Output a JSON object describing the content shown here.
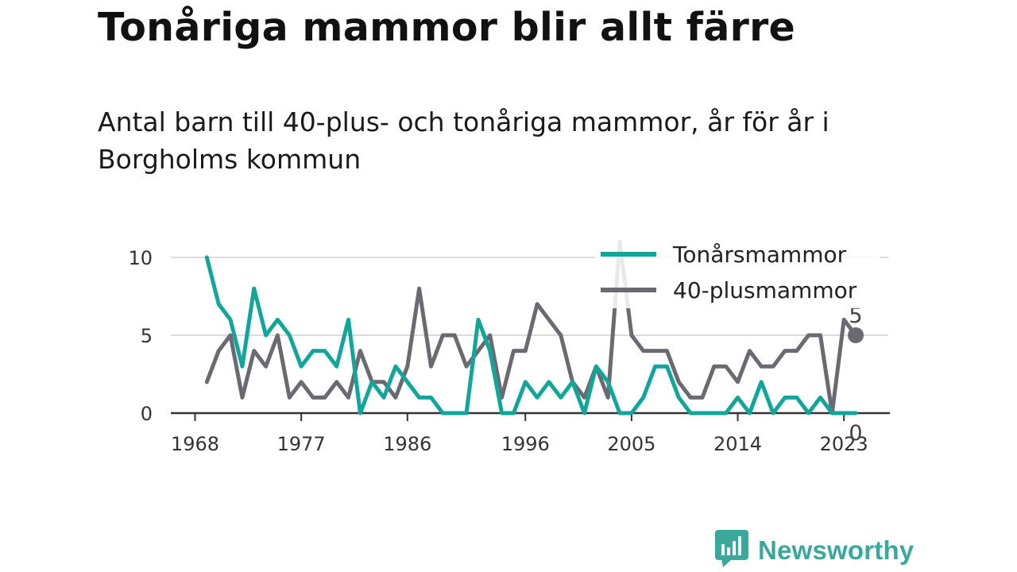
{
  "title": "Tonåriga mammor blir allt färre",
  "subtitle": "Antal barn till 40-plus- och tonåriga mammor, år för år i Borgholms kommun",
  "brand": {
    "name": "Newsworthy"
  },
  "chart_data": {
    "type": "line",
    "title": "Tonåriga mammor blir allt färre",
    "subtitle": "Antal barn till 40-plus- och tonåriga mammor, år för år i Borgholms kommun",
    "x_ticks": [
      1968,
      1977,
      1986,
      1996,
      2005,
      2014,
      2023
    ],
    "y_ticks": [
      0,
      5,
      10
    ],
    "ylim": [
      0,
      11
    ],
    "grid": "horizontal",
    "legend_position": "top-right",
    "series": [
      {
        "name": "Tonårsmammor",
        "color": "#12a69b",
        "x": [
          1969,
          1970,
          1971,
          1972,
          1973,
          1974,
          1975,
          1976,
          1977,
          1978,
          1979,
          1980,
          1981,
          1982,
          1983,
          1984,
          1985,
          1986,
          1987,
          1988,
          1989,
          1990,
          1991,
          1992,
          1993,
          1994,
          1995,
          1996,
          1997,
          1998,
          1999,
          2000,
          2001,
          2002,
          2003,
          2004,
          2005,
          2006,
          2007,
          2008,
          2009,
          2010,
          2011,
          2012,
          2013,
          2014,
          2015,
          2016,
          2017,
          2018,
          2019,
          2020,
          2021,
          2022,
          2023,
          2024
        ],
        "values": [
          10,
          7,
          6,
          3,
          8,
          5,
          6,
          5,
          3,
          4,
          4,
          3,
          6,
          0,
          2,
          1,
          3,
          2,
          1,
          1,
          0,
          0,
          0,
          6,
          4,
          0,
          0,
          2,
          1,
          2,
          1,
          2,
          0,
          3,
          2,
          0,
          0,
          1,
          3,
          3,
          1,
          0,
          0,
          0,
          0,
          1,
          0,
          2,
          0,
          1,
          1,
          0,
          1,
          0,
          0,
          0
        ],
        "end_label": "0"
      },
      {
        "name": "40-plusmammor",
        "color": "#6b6a72",
        "x": [
          1969,
          1970,
          1971,
          1972,
          1973,
          1974,
          1975,
          1976,
          1977,
          1978,
          1979,
          1980,
          1981,
          1982,
          1983,
          1984,
          1985,
          1986,
          1987,
          1988,
          1989,
          1990,
          1991,
          1992,
          1993,
          1994,
          1995,
          1996,
          1997,
          1998,
          1999,
          2000,
          2001,
          2002,
          2003,
          2004,
          2005,
          2006,
          2007,
          2008,
          2009,
          2010,
          2011,
          2012,
          2013,
          2014,
          2015,
          2016,
          2017,
          2018,
          2019,
          2020,
          2021,
          2022,
          2023,
          2024
        ],
        "values": [
          2,
          4,
          5,
          1,
          4,
          3,
          5,
          1,
          2,
          1,
          1,
          2,
          1,
          4,
          2,
          2,
          1,
          3,
          8,
          3,
          5,
          5,
          3,
          4,
          5,
          1,
          4,
          4,
          7,
          6,
          5,
          2,
          1,
          3,
          1,
          11,
          5,
          4,
          4,
          4,
          2,
          1,
          1,
          3,
          3,
          2,
          4,
          3,
          3,
          4,
          4,
          5,
          5,
          0,
          6,
          5
        ],
        "end_label": "5"
      }
    ]
  }
}
